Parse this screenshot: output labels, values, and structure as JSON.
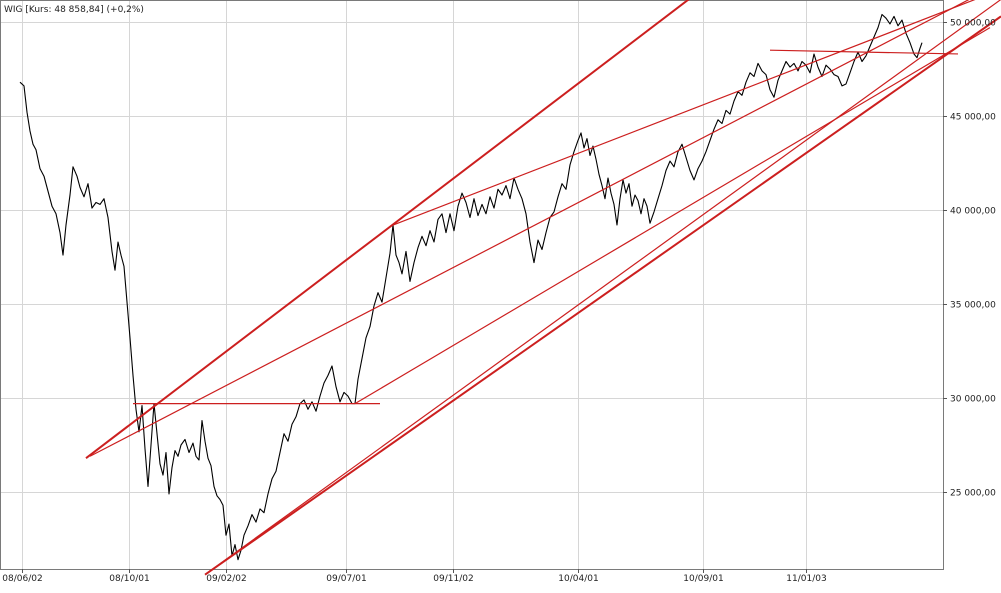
{
  "chart_data": {
    "type": "line",
    "title": "WIG [Kurs: 48 858,84] (+0,2%)",
    "xlabel": "",
    "ylabel": "",
    "ylim": [
      21000,
      51500
    ],
    "grid": true,
    "y_ticks": [
      {
        "value": 25000,
        "label": "25 000,00"
      },
      {
        "value": 30000,
        "label": "30 000,00"
      },
      {
        "value": 35000,
        "label": "35 000,00"
      },
      {
        "value": 40000,
        "label": "40 000,00"
      },
      {
        "value": 45000,
        "label": "45 000,00"
      },
      {
        "value": 50000,
        "label": "50 000,00"
      }
    ],
    "x_ticks": [
      {
        "label": "08/06/02",
        "index": 22
      },
      {
        "label": "08/10/01",
        "index": 129
      },
      {
        "label": "09/02/02",
        "index": 226
      },
      {
        "label": "09/07/01",
        "index": 346
      },
      {
        "label": "09/11/02",
        "index": 453
      },
      {
        "label": "10/04/01",
        "index": 578
      },
      {
        "label": "10/09/01",
        "index": 703
      },
      {
        "label": "11/01/03",
        "index": 806
      }
    ],
    "x_range": [
      0,
      940
    ],
    "series": [
      {
        "color": "#000000",
        "points": [
          [
            20,
            46800
          ],
          [
            24,
            46600
          ],
          [
            27,
            45200
          ],
          [
            30,
            44200
          ],
          [
            33,
            43500
          ],
          [
            36,
            43200
          ],
          [
            40,
            42200
          ],
          [
            44,
            41800
          ],
          [
            48,
            41000
          ],
          [
            52,
            40200
          ],
          [
            56,
            39800
          ],
          [
            60,
            38800
          ],
          [
            63,
            37600
          ],
          [
            66,
            39200
          ],
          [
            70,
            40800
          ],
          [
            73,
            42300
          ],
          [
            77,
            41800
          ],
          [
            80,
            41200
          ],
          [
            84,
            40700
          ],
          [
            88,
            41400
          ],
          [
            92,
            40100
          ],
          [
            96,
            40400
          ],
          [
            100,
            40300
          ],
          [
            104,
            40600
          ],
          [
            108,
            39600
          ],
          [
            112,
            37800
          ],
          [
            115,
            36800
          ],
          [
            118,
            38300
          ],
          [
            121,
            37600
          ],
          [
            124,
            37000
          ],
          [
            127,
            35100
          ],
          [
            130,
            33200
          ],
          [
            133,
            31200
          ],
          [
            136,
            29400
          ],
          [
            139,
            28200
          ],
          [
            142,
            29600
          ],
          [
            145,
            27300
          ],
          [
            148,
            25300
          ],
          [
            151,
            27500
          ],
          [
            154,
            29700
          ],
          [
            157,
            28100
          ],
          [
            160,
            26500
          ],
          [
            163,
            25900
          ],
          [
            166,
            27100
          ],
          [
            169,
            24900
          ],
          [
            172,
            26300
          ],
          [
            175,
            27200
          ],
          [
            178,
            26900
          ],
          [
            181,
            27500
          ],
          [
            185,
            27800
          ],
          [
            189,
            27100
          ],
          [
            193,
            27600
          ],
          [
            196,
            26900
          ],
          [
            199,
            26700
          ],
          [
            202,
            28800
          ],
          [
            205,
            27700
          ],
          [
            208,
            26800
          ],
          [
            211,
            26400
          ],
          [
            214,
            25300
          ],
          [
            217,
            24800
          ],
          [
            220,
            24600
          ],
          [
            223,
            24300
          ],
          [
            226,
            22700
          ],
          [
            229,
            23300
          ],
          [
            232,
            21600
          ],
          [
            235,
            22200
          ],
          [
            238,
            21400
          ],
          [
            241,
            21900
          ],
          [
            244,
            22700
          ],
          [
            248,
            23200
          ],
          [
            252,
            23800
          ],
          [
            256,
            23400
          ],
          [
            260,
            24100
          ],
          [
            264,
            23900
          ],
          [
            268,
            24900
          ],
          [
            272,
            25700
          ],
          [
            276,
            26100
          ],
          [
            280,
            27100
          ],
          [
            284,
            28100
          ],
          [
            288,
            27700
          ],
          [
            292,
            28600
          ],
          [
            296,
            29000
          ],
          [
            300,
            29700
          ],
          [
            304,
            29900
          ],
          [
            308,
            29400
          ],
          [
            312,
            29800
          ],
          [
            316,
            29300
          ],
          [
            320,
            30100
          ],
          [
            324,
            30800
          ],
          [
            328,
            31200
          ],
          [
            332,
            31700
          ],
          [
            336,
            30600
          ],
          [
            340,
            29800
          ],
          [
            344,
            30300
          ],
          [
            348,
            30100
          ],
          [
            352,
            29700
          ],
          [
            355,
            29700
          ],
          [
            358,
            31000
          ],
          [
            362,
            32100
          ],
          [
            366,
            33200
          ],
          [
            370,
            33800
          ],
          [
            374,
            34900
          ],
          [
            378,
            35600
          ],
          [
            382,
            35100
          ],
          [
            386,
            36400
          ],
          [
            390,
            37700
          ],
          [
            393,
            39200
          ],
          [
            396,
            37600
          ],
          [
            399,
            37200
          ],
          [
            402,
            36600
          ],
          [
            406,
            37800
          ],
          [
            410,
            36200
          ],
          [
            414,
            37200
          ],
          [
            418,
            38000
          ],
          [
            422,
            38600
          ],
          [
            426,
            38100
          ],
          [
            430,
            38900
          ],
          [
            434,
            38300
          ],
          [
            438,
            39500
          ],
          [
            442,
            39800
          ],
          [
            446,
            38800
          ],
          [
            450,
            39800
          ],
          [
            454,
            38900
          ],
          [
            458,
            40200
          ],
          [
            462,
            40900
          ],
          [
            466,
            40400
          ],
          [
            470,
            39600
          ],
          [
            474,
            40600
          ],
          [
            478,
            39700
          ],
          [
            482,
            40300
          ],
          [
            486,
            39800
          ],
          [
            490,
            40700
          ],
          [
            494,
            40100
          ],
          [
            498,
            41100
          ],
          [
            502,
            40800
          ],
          [
            506,
            41300
          ],
          [
            510,
            40600
          ],
          [
            514,
            41700
          ],
          [
            518,
            41100
          ],
          [
            522,
            40600
          ],
          [
            526,
            39800
          ],
          [
            530,
            38300
          ],
          [
            534,
            37200
          ],
          [
            538,
            38400
          ],
          [
            542,
            37900
          ],
          [
            546,
            38800
          ],
          [
            550,
            39600
          ],
          [
            554,
            39900
          ],
          [
            558,
            40700
          ],
          [
            562,
            41400
          ],
          [
            566,
            41100
          ],
          [
            570,
            42400
          ],
          [
            574,
            43100
          ],
          [
            578,
            43700
          ],
          [
            581,
            44100
          ],
          [
            584,
            43300
          ],
          [
            587,
            43800
          ],
          [
            590,
            42900
          ],
          [
            593,
            43400
          ],
          [
            596,
            42700
          ],
          [
            599,
            41900
          ],
          [
            602,
            41300
          ],
          [
            605,
            40600
          ],
          [
            608,
            41700
          ],
          [
            611,
            40900
          ],
          [
            614,
            40300
          ],
          [
            617,
            39200
          ],
          [
            620,
            40600
          ],
          [
            623,
            41600
          ],
          [
            626,
            40900
          ],
          [
            629,
            41400
          ],
          [
            632,
            40200
          ],
          [
            635,
            40800
          ],
          [
            638,
            40500
          ],
          [
            641,
            39800
          ],
          [
            644,
            40600
          ],
          [
            647,
            40200
          ],
          [
            650,
            39300
          ],
          [
            654,
            39900
          ],
          [
            658,
            40600
          ],
          [
            662,
            41300
          ],
          [
            666,
            42100
          ],
          [
            670,
            42600
          ],
          [
            674,
            42300
          ],
          [
            678,
            43100
          ],
          [
            682,
            43500
          ],
          [
            686,
            42800
          ],
          [
            690,
            42100
          ],
          [
            694,
            41600
          ],
          [
            698,
            42200
          ],
          [
            702,
            42600
          ],
          [
            706,
            43100
          ],
          [
            710,
            43700
          ],
          [
            714,
            44300
          ],
          [
            718,
            44800
          ],
          [
            722,
            44600
          ],
          [
            726,
            45300
          ],
          [
            730,
            45100
          ],
          [
            734,
            45800
          ],
          [
            738,
            46300
          ],
          [
            742,
            46100
          ],
          [
            746,
            46800
          ],
          [
            750,
            47300
          ],
          [
            754,
            47100
          ],
          [
            758,
            47800
          ],
          [
            762,
            47400
          ],
          [
            766,
            47200
          ],
          [
            770,
            46400
          ],
          [
            774,
            46000
          ],
          [
            778,
            46900
          ],
          [
            782,
            47400
          ],
          [
            786,
            47900
          ],
          [
            790,
            47600
          ],
          [
            794,
            47800
          ],
          [
            798,
            47400
          ],
          [
            802,
            47900
          ],
          [
            806,
            47700
          ],
          [
            810,
            47300
          ],
          [
            814,
            48300
          ],
          [
            818,
            47600
          ],
          [
            822,
            47100
          ],
          [
            826,
            47700
          ],
          [
            830,
            47500
          ],
          [
            834,
            47200
          ],
          [
            838,
            47100
          ],
          [
            842,
            46600
          ],
          [
            846,
            46700
          ],
          [
            850,
            47300
          ],
          [
            854,
            47900
          ],
          [
            858,
            48400
          ],
          [
            862,
            47900
          ],
          [
            866,
            48200
          ],
          [
            870,
            48700
          ],
          [
            874,
            49200
          ],
          [
            878,
            49700
          ],
          [
            882,
            50400
          ],
          [
            886,
            50200
          ],
          [
            890,
            49900
          ],
          [
            894,
            50300
          ],
          [
            898,
            49800
          ],
          [
            902,
            50100
          ],
          [
            906,
            49400
          ],
          [
            910,
            48900
          ],
          [
            914,
            48300
          ],
          [
            917,
            48100
          ],
          [
            920,
            48600
          ],
          [
            922,
            48900
          ]
        ]
      }
    ],
    "trendlines": [
      {
        "color": "#cc1f1f",
        "width": 2,
        "from": [
          86,
          26800
        ],
        "to": [
          696,
          51500
        ]
      },
      {
        "color": "#cc1f1f",
        "width": 2,
        "from": [
          205,
          20600
        ],
        "to": [
          1001,
          50300
        ]
      },
      {
        "color": "#cc1f1f",
        "width": 1.2,
        "from": [
          90,
          26900
        ],
        "to": [
          980,
          51500
        ]
      },
      {
        "color": "#cc1f1f",
        "width": 1.2,
        "from": [
          393,
          39200
        ],
        "to": [
          980,
          51300
        ]
      },
      {
        "color": "#cc1f1f",
        "width": 1.2,
        "from": [
          210,
          20800
        ],
        "to": [
          1001,
          51200
        ]
      },
      {
        "color": "#cc1f1f",
        "width": 1.2,
        "from": [
          355,
          29700
        ],
        "to": [
          990,
          49700
        ]
      },
      {
        "color": "#cc1f1f",
        "width": 1.2,
        "from": [
          133,
          29700
        ],
        "to": [
          380,
          29700
        ]
      },
      {
        "color": "#cc1f1f",
        "width": 1.2,
        "from": [
          770,
          48500
        ],
        "to": [
          958,
          48300
        ]
      }
    ]
  }
}
